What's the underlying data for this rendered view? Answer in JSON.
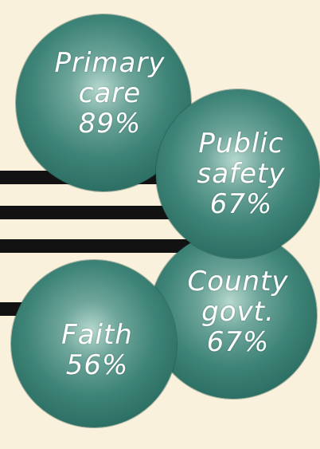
{
  "diagram": {
    "bubbles": [
      {
        "id": "primary-care",
        "label_lines": [
          "Primary",
          "care"
        ],
        "value": "89%"
      },
      {
        "id": "public-safety",
        "label_lines": [
          "Public",
          "safety"
        ],
        "value": "67%"
      },
      {
        "id": "county-govt",
        "label_lines": [
          "County",
          "govt."
        ],
        "value": "67%"
      },
      {
        "id": "faith",
        "label_lines": [
          "Faith"
        ],
        "value": "56%"
      }
    ],
    "colors": {
      "background": "#f9f1dc",
      "bubble": "#2f7468",
      "bars": "#121212",
      "text": "#ffffff"
    }
  }
}
